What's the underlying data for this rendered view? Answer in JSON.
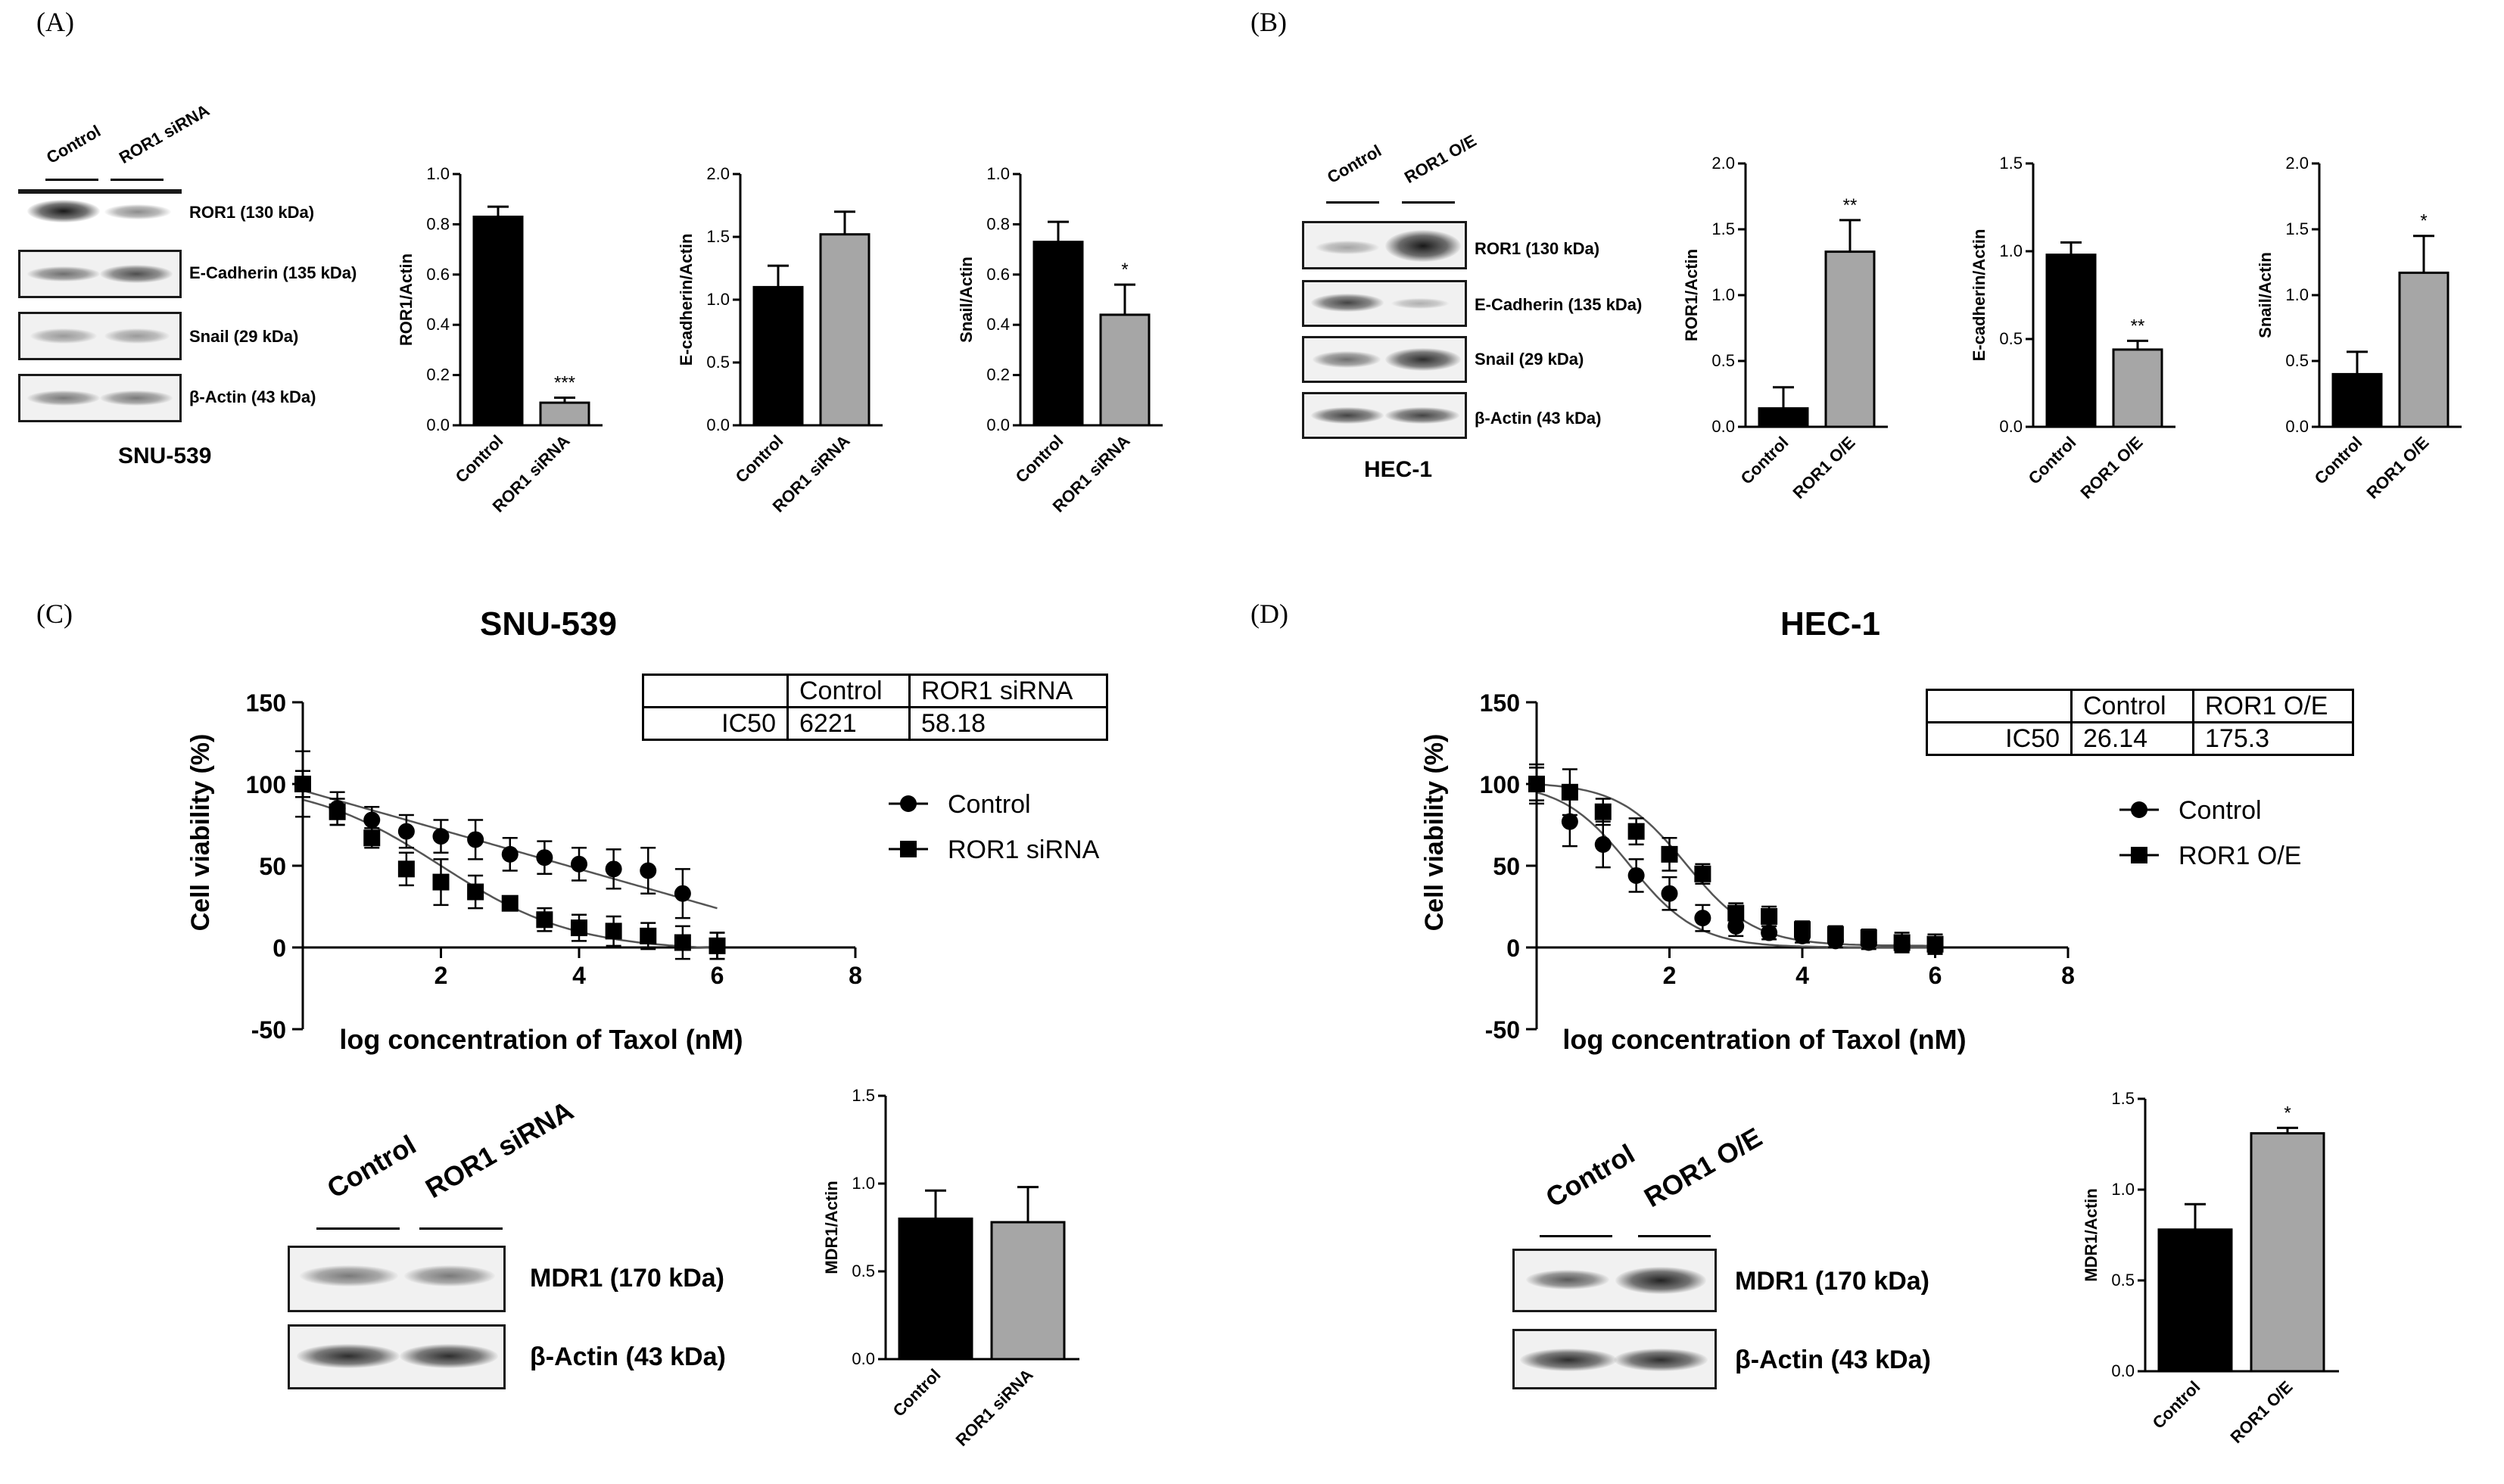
{
  "panels": {
    "A": {
      "label": "(A)",
      "cell_line": "SNU-539",
      "lanes": [
        "Control",
        "ROR1 siRNA"
      ],
      "bands": [
        "ROR1 (130 kDa)",
        "E-Cadherin (135 kDa)",
        "Snail (29 kDa)",
        "β-Actin (43 kDa)"
      ]
    },
    "B": {
      "label": "(B)",
      "cell_line": "HEC-1",
      "lanes": [
        "Control",
        "ROR1 O/E"
      ],
      "bands": [
        "ROR1 (130 kDa)",
        "E-Cadherin (135 kDa)",
        "Snail (29 kDa)",
        "β-Actin (43 kDa)"
      ]
    },
    "C": {
      "label": "(C)",
      "title": "SNU-539",
      "lanes": [
        "Control",
        "ROR1 siRNA"
      ],
      "bands": [
        "MDR1 (170 kDa)",
        "β-Actin (43 kDa)"
      ],
      "ic50_table": {
        "header": [
          "",
          "Control",
          "ROR1 siRNA"
        ],
        "row": [
          "IC50",
          "6221",
          "58.18"
        ]
      }
    },
    "D": {
      "label": "(D)",
      "title": "HEC-1",
      "lanes": [
        "Control",
        "ROR1 O/E"
      ],
      "bands": [
        "MDR1 (170 kDa)",
        "β-Actin (43 kDa)"
      ],
      "ic50_table": {
        "header": [
          "",
          "Control",
          "ROR1 O/E"
        ],
        "row": [
          "IC50",
          "26.14",
          "175.3"
        ]
      }
    }
  },
  "colors": {
    "control_bar": "#000000",
    "treatment_bar": "#a6a6a6",
    "axis": "#000000"
  },
  "chart_data": [
    {
      "id": "A1",
      "type": "bar",
      "categories": [
        "Control",
        "ROR1 siRNA"
      ],
      "values": [
        0.83,
        0.09
      ],
      "errors": [
        0.04,
        0.02
      ],
      "ylabel": "ROR1/Actin",
      "ylim": [
        0,
        1.0
      ],
      "yticks": [
        "0.0",
        "0.2",
        "0.4",
        "0.6",
        "0.8",
        "1.0"
      ],
      "annotations": [
        "",
        "***"
      ]
    },
    {
      "id": "A2",
      "type": "bar",
      "categories": [
        "Control",
        "ROR1 siRNA"
      ],
      "values": [
        1.1,
        1.52
      ],
      "errors": [
        0.17,
        0.18
      ],
      "ylabel": "E-cadherin/Actin",
      "ylim": [
        0,
        2.0
      ],
      "yticks": [
        "0.0",
        "0.5",
        "1.0",
        "1.5",
        "2.0"
      ],
      "annotations": [
        "",
        ""
      ]
    },
    {
      "id": "A3",
      "type": "bar",
      "categories": [
        "Control",
        "ROR1 siRNA"
      ],
      "values": [
        0.73,
        0.44
      ],
      "errors": [
        0.08,
        0.12
      ],
      "ylabel": "Snail/Actin",
      "ylim": [
        0,
        1.0
      ],
      "yticks": [
        "0.0",
        "0.2",
        "0.4",
        "0.6",
        "0.8",
        "1.0"
      ],
      "annotations": [
        "",
        "*"
      ]
    },
    {
      "id": "B1",
      "type": "bar",
      "categories": [
        "Control",
        "ROR1 O/E"
      ],
      "values": [
        0.14,
        1.33
      ],
      "errors": [
        0.16,
        0.24
      ],
      "ylabel": "ROR1/Actin",
      "ylim": [
        0,
        2.0
      ],
      "yticks": [
        "0.0",
        "0.5",
        "1.0",
        "1.5",
        "2.0"
      ],
      "annotations": [
        "",
        "**"
      ]
    },
    {
      "id": "B2",
      "type": "bar",
      "categories": [
        "Control",
        "ROR1 O/E"
      ],
      "values": [
        0.98,
        0.44
      ],
      "errors": [
        0.07,
        0.05
      ],
      "ylabel": "E-cadherin/Actin",
      "ylim": [
        0,
        1.5
      ],
      "yticks": [
        "0.0",
        "0.5",
        "1.0",
        "1.5"
      ],
      "annotations": [
        "",
        "**"
      ]
    },
    {
      "id": "B3",
      "type": "bar",
      "categories": [
        "Control",
        "ROR1 O/E"
      ],
      "values": [
        0.4,
        1.17
      ],
      "errors": [
        0.17,
        0.28
      ],
      "ylabel": "Snail/Actin",
      "ylim": [
        0,
        2.0
      ],
      "yticks": [
        "0.0",
        "0.5",
        "1.0",
        "1.5",
        "2.0"
      ],
      "annotations": [
        "",
        "*"
      ]
    },
    {
      "id": "C1",
      "type": "scatter",
      "title": "SNU-539",
      "xlabel": "log concentration of Taxol (nM)",
      "ylabel": "Cell viability (%)",
      "xlim": [
        0,
        8
      ],
      "ylim": [
        -50,
        150
      ],
      "xticks": [
        "2",
        "4",
        "6",
        "8"
      ],
      "yticks": [
        "-50",
        "0",
        "50",
        "100",
        "150"
      ],
      "series": [
        {
          "name": "Control",
          "marker": "circle",
          "x": [
            0,
            0.5,
            1.0,
            1.5,
            2.0,
            2.5,
            3.0,
            3.5,
            4.0,
            4.5,
            5.0,
            5.5,
            6.0
          ],
          "y": [
            100,
            85,
            78,
            71,
            68,
            66,
            57,
            55,
            51,
            48,
            47,
            33,
            1
          ],
          "err": [
            20,
            10,
            8,
            10,
            10,
            12,
            10,
            10,
            10,
            12,
            14,
            15,
            8
          ]
        },
        {
          "name": "ROR1 siRNA",
          "marker": "square",
          "x": [
            0,
            0.5,
            1.0,
            1.5,
            2.0,
            2.5,
            3.0,
            3.5,
            4.0,
            4.5,
            5.0,
            5.5,
            6.0
          ],
          "y": [
            100,
            83,
            67,
            48,
            40,
            34,
            27,
            17,
            12,
            10,
            7,
            3,
            1
          ],
          "err": [
            8,
            8,
            6,
            10,
            14,
            10,
            4,
            7,
            8,
            9,
            8,
            10,
            8
          ]
        }
      ]
    },
    {
      "id": "D1",
      "type": "scatter",
      "title": "HEC-1",
      "xlabel": "log concentration of Taxol (nM)",
      "ylabel": "Cell viability (%)",
      "xlim": [
        0,
        8
      ],
      "ylim": [
        -50,
        150
      ],
      "xticks": [
        "2",
        "4",
        "6",
        "8"
      ],
      "yticks": [
        "-50",
        "0",
        "50",
        "100",
        "150"
      ],
      "series": [
        {
          "name": "Control",
          "marker": "circle",
          "x": [
            0,
            0.5,
            1.0,
            1.5,
            2.0,
            2.5,
            3.0,
            3.5,
            4.0,
            4.5,
            5.0,
            5.5,
            6.0
          ],
          "y": [
            100,
            77,
            63,
            44,
            33,
            18,
            13,
            9,
            7,
            4,
            3,
            2,
            1
          ],
          "err": [
            12,
            15,
            14,
            10,
            10,
            8,
            6,
            4,
            4,
            4,
            4,
            4,
            4
          ]
        },
        {
          "name": "ROR1 O/E",
          "marker": "square",
          "x": [
            0,
            0.5,
            1.0,
            1.5,
            2.0,
            2.5,
            3.0,
            3.5,
            4.0,
            4.5,
            5.0,
            5.5,
            6.0
          ],
          "y": [
            100,
            95,
            83,
            71,
            57,
            45,
            21,
            19,
            11,
            8,
            6,
            3,
            2
          ],
          "err": [
            10,
            14,
            8,
            8,
            10,
            6,
            6,
            6,
            5,
            5,
            5,
            6,
            6
          ]
        }
      ]
    },
    {
      "id": "C2",
      "type": "bar",
      "categories": [
        "Control",
        "ROR1 siRNA"
      ],
      "values": [
        0.8,
        0.78
      ],
      "errors": [
        0.16,
        0.2
      ],
      "ylabel": "MDR1/Actin",
      "ylim": [
        0,
        1.5
      ],
      "yticks": [
        "0.0",
        "0.5",
        "1.0",
        "1.5"
      ],
      "annotations": [
        "",
        ""
      ]
    },
    {
      "id": "D2",
      "type": "bar",
      "categories": [
        "Control",
        "ROR1 O/E"
      ],
      "values": [
        0.78,
        1.31
      ],
      "errors": [
        0.14,
        0.03
      ],
      "ylabel": "MDR1/Actin",
      "ylim": [
        0,
        1.5
      ],
      "yticks": [
        "0.0",
        "0.5",
        "1.0",
        "1.5"
      ],
      "annotations": [
        "",
        "*"
      ]
    }
  ]
}
